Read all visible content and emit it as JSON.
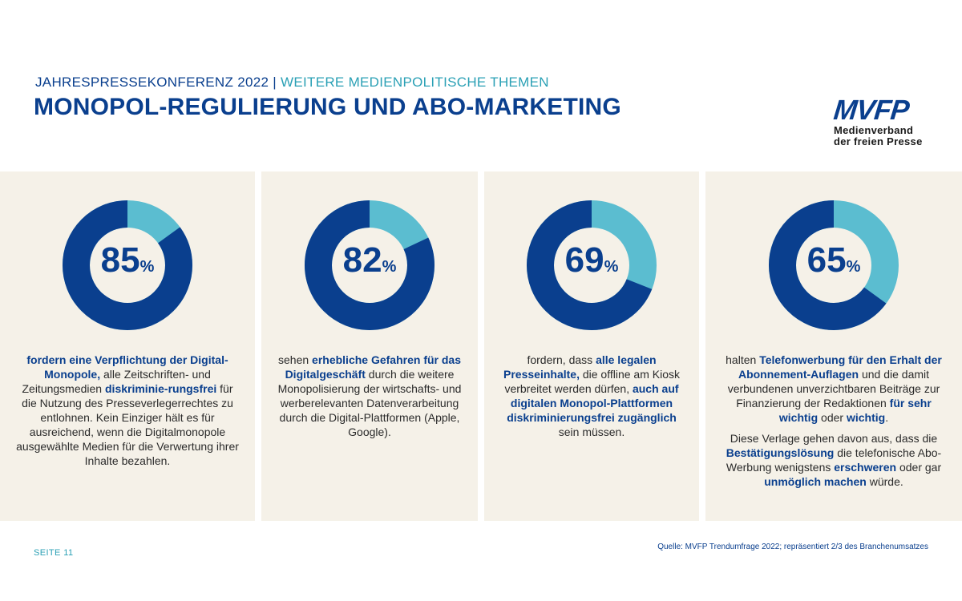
{
  "header": {
    "kicker": "JAHRESPRESSEKONFERENZ 2022 |",
    "kicker_sub": "WEITERE MEDIENPOLITISCHE THEMEN",
    "title": "MONOPOL-REGULIERUNG UND ABO-MARKETING"
  },
  "logo": {
    "mark": "MVFP",
    "line1": "Medienverband",
    "line2": "der freien Presse"
  },
  "colors": {
    "primary": "#0a3f8e",
    "accent": "#5bbdd0",
    "panel": "#f5f1e8"
  },
  "panels": [
    {
      "value": 85,
      "percent_sign": "%",
      "paragraphs": [
        [
          {
            "t": "fordern eine Verpflichtung der Digital-Monopole,",
            "b": true
          },
          {
            "t": " alle Zeitschriften- und Zeitungsmedien ",
            "b": false
          },
          {
            "t": "diskriminie-rungsfrei",
            "b": true
          },
          {
            "t": " für die Nutzung des Presseverlegerrechtes zu entlohnen. Kein Einziger hält es für ausreichend, wenn die Digitalmonopole ausgewählte Medien für die Verwertung ihrer Inhalte bezahlen.",
            "b": false
          }
        ]
      ]
    },
    {
      "value": 82,
      "percent_sign": "%",
      "paragraphs": [
        [
          {
            "t": "sehen ",
            "b": false
          },
          {
            "t": "erhebliche Gefahren für das Digitalgeschäft",
            "b": true
          },
          {
            "t": " durch die weitere Monopolisierung der wirtschafts- und werberelevanten Datenverarbeitung durch die Digital-Plattformen (Apple, Google).",
            "b": false
          }
        ]
      ]
    },
    {
      "value": 69,
      "percent_sign": "%",
      "paragraphs": [
        [
          {
            "t": "fordern, dass ",
            "b": false
          },
          {
            "t": "alle legalen Presseinhalte,",
            "b": true
          },
          {
            "t": " die offline am Kiosk verbreitet werden dürfen, ",
            "b": false
          },
          {
            "t": "auch auf digitalen Monopol-Plattformen diskriminierungsfrei zugänglich",
            "b": true
          },
          {
            "t": " sein müssen.",
            "b": false
          }
        ]
      ]
    },
    {
      "value": 65,
      "percent_sign": "%",
      "paragraphs": [
        [
          {
            "t": "halten ",
            "b": false
          },
          {
            "t": "Telefonwerbung für den Erhalt der Abonnement-Auflagen",
            "b": true
          },
          {
            "t": " und die damit verbundenen unverzichtbaren Beiträge zur Finanzierung der Redaktionen ",
            "b": false
          },
          {
            "t": "für sehr wichtig",
            "b": true
          },
          {
            "t": " oder ",
            "b": false
          },
          {
            "t": "wichtig",
            "b": true
          },
          {
            "t": ".",
            "b": false
          }
        ],
        [
          {
            "t": "Diese Verlage gehen davon aus, dass die ",
            "b": false
          },
          {
            "t": "Bestätigungslösung",
            "b": true
          },
          {
            "t": " die telefonische Abo-Werbung wenigstens ",
            "b": false
          },
          {
            "t": "erschweren",
            "b": true
          },
          {
            "t": " oder gar ",
            "b": false
          },
          {
            "t": "unmöglich machen",
            "b": true
          },
          {
            "t": " würde.",
            "b": false
          }
        ]
      ]
    }
  ],
  "footer": {
    "page": "SEITE 11",
    "source": "Quelle: MVFP Trendumfrage 2022; repräsentiert 2/3 des Branchenumsatzes"
  }
}
